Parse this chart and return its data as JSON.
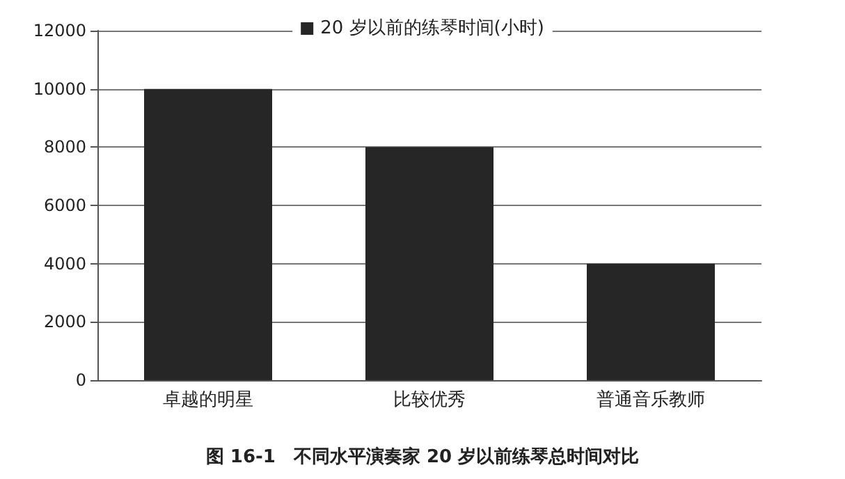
{
  "chart_data": {
    "type": "bar",
    "title": "图 16-1　不同水平演奏家 20 岁以前练琴总时间对比",
    "categories": [
      "卓越的明星",
      "比较优秀",
      "普通音乐教师"
    ],
    "series": [
      {
        "name": "20 岁以前的练琴时间(小时)",
        "color": "#262626",
        "values": [
          10000,
          8000,
          4000
        ]
      }
    ],
    "ylim": [
      0,
      12000
    ],
    "yticks": [
      0,
      2000,
      4000,
      6000,
      8000,
      10000,
      12000
    ],
    "grid": "y",
    "legend": "top"
  }
}
